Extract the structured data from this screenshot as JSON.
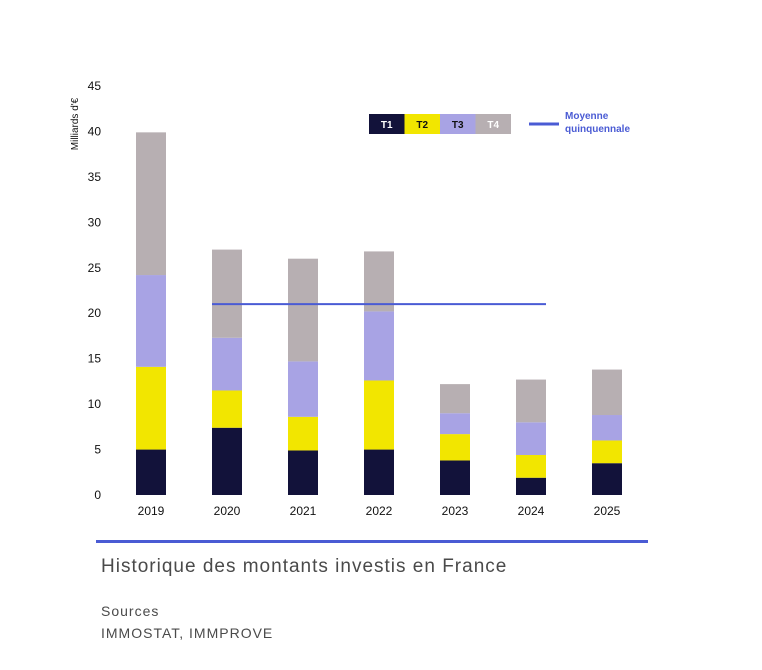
{
  "chart_data": {
    "type": "bar",
    "stacked": true,
    "categories": [
      "2019",
      "2020",
      "2021",
      "2022",
      "2023",
      "2024",
      "2025"
    ],
    "series": [
      {
        "name": "T1",
        "color": "#12123a",
        "text_color": "#ffffff",
        "values": [
          5.0,
          7.4,
          4.9,
          5.0,
          3.8,
          1.9,
          3.5
        ]
      },
      {
        "name": "T2",
        "color": "#f2e600",
        "text_color": "#111111",
        "values": [
          9.1,
          4.1,
          3.7,
          7.6,
          2.9,
          2.5,
          2.5
        ]
      },
      {
        "name": "T3",
        "color": "#a8a3e4",
        "text_color": "#111111",
        "values": [
          10.1,
          5.8,
          6.1,
          7.6,
          2.3,
          3.6,
          2.8
        ]
      },
      {
        "name": "T4",
        "color": "#b7afb2",
        "text_color": "#ffffff",
        "values": [
          15.7,
          9.7,
          11.3,
          6.6,
          3.2,
          4.7,
          5.0
        ]
      }
    ],
    "average": {
      "label_line1": "Moyenne",
      "label_line2": "quinquennale",
      "value": 21,
      "from": "2020",
      "to": "2024",
      "color": "#4a5bd4"
    },
    "ylabel": "Milliards d'€",
    "ylim": [
      0,
      45
    ],
    "yticks": [
      0,
      5,
      10,
      15,
      20,
      25,
      30,
      35,
      40,
      45
    ],
    "grid": false,
    "legend_position": "top-right"
  },
  "caption": {
    "title": "Historique des montants investis en France",
    "sources_label": "Sources",
    "sources_value": "IMMOSTAT, IMMPROVE",
    "rule_color": "#4a5bd4"
  }
}
